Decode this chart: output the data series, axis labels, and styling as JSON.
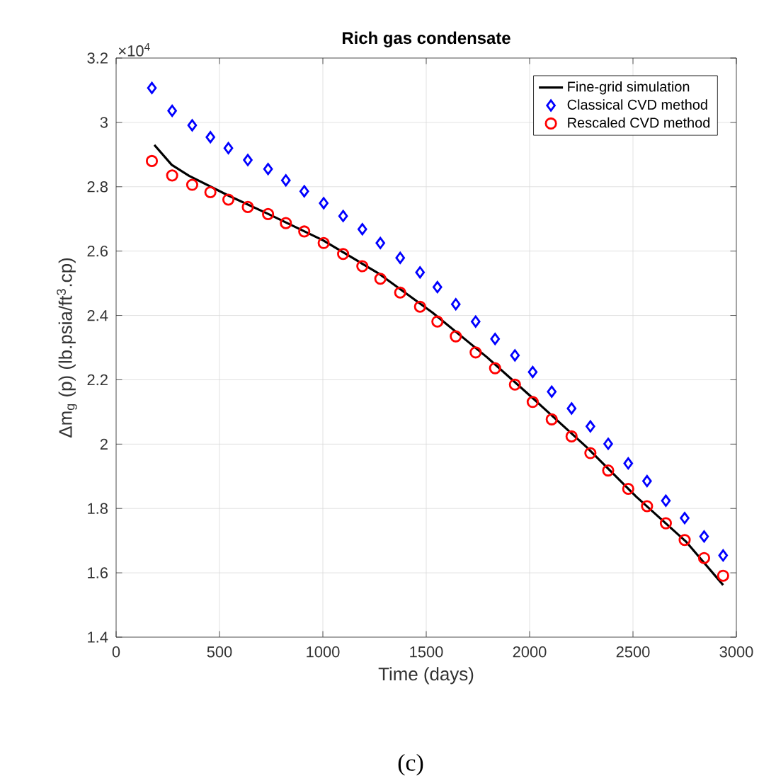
{
  "chart_data": {
    "type": "scatter",
    "title": "Rich gas condensate",
    "xlabel": "Time (days)",
    "ylabel": "Δm$_{g}$ (p) (lb.psia/ft$^{3}$.cp)",
    "annotations": [
      "×10$^{4}$",
      "(c)"
    ],
    "xlim": [
      0,
      3000
    ],
    "xticks": [
      0,
      500,
      1000,
      1500,
      2000,
      2500,
      3000
    ],
    "ylim": [
      1.4,
      3.2
    ],
    "yticks": [
      1.4,
      1.6,
      1.8,
      2,
      2.2,
      2.4,
      2.6,
      2.8,
      3,
      3.2
    ],
    "grid": true,
    "legend": "top right",
    "series": [
      {
        "name": "Fine-grid simulation",
        "type": "line",
        "color": "#000000",
        "marker": "none",
        "line_style": "solid",
        "x": [
          185,
          269,
          353,
          545,
          737,
          1002,
          1266,
          1530,
          1794,
          2010,
          2275,
          2515,
          2755,
          2936
        ],
        "values": [
          2.93,
          2.868,
          2.834,
          2.772,
          2.715,
          2.633,
          2.532,
          2.409,
          2.27,
          2.146,
          1.991,
          1.837,
          1.698,
          1.562
        ]
      },
      {
        "name": "Classical CVD method",
        "color": "#0000ff",
        "marker": "diamond",
        "x": [
          173,
          271,
          368,
          456,
          543,
          637,
          735,
          821,
          910,
          1004,
          1098,
          1191,
          1278,
          1374,
          1470,
          1554,
          1643,
          1739,
          1833,
          1929,
          2015,
          2107,
          2203,
          2294,
          2380,
          2477,
          2568,
          2659,
          2750,
          2844,
          2936
        ],
        "values": [
          3.107,
          3.036,
          2.991,
          2.954,
          2.92,
          2.883,
          2.855,
          2.82,
          2.786,
          2.749,
          2.709,
          2.668,
          2.625,
          2.579,
          2.534,
          2.488,
          2.435,
          2.381,
          2.327,
          2.276,
          2.224,
          2.163,
          2.111,
          2.055,
          2.001,
          1.94,
          1.885,
          1.824,
          1.77,
          1.713,
          1.654
        ]
      },
      {
        "name": "Rescaled CVD method",
        "color": "#ff0000",
        "marker": "circle",
        "x": [
          173,
          271,
          368,
          456,
          543,
          637,
          735,
          821,
          910,
          1004,
          1098,
          1191,
          1278,
          1374,
          1470,
          1554,
          1643,
          1739,
          1833,
          1929,
          2015,
          2107,
          2203,
          2294,
          2380,
          2477,
          2568,
          2659,
          2750,
          2844,
          2936
        ],
        "values": [
          2.88,
          2.835,
          2.806,
          2.783,
          2.76,
          2.737,
          2.715,
          2.687,
          2.661,
          2.625,
          2.591,
          2.553,
          2.514,
          2.471,
          2.427,
          2.381,
          2.335,
          2.285,
          2.236,
          2.185,
          2.131,
          2.077,
          2.024,
          1.972,
          1.918,
          1.861,
          1.807,
          1.754,
          1.702,
          1.646,
          1.591
        ]
      }
    ]
  }
}
